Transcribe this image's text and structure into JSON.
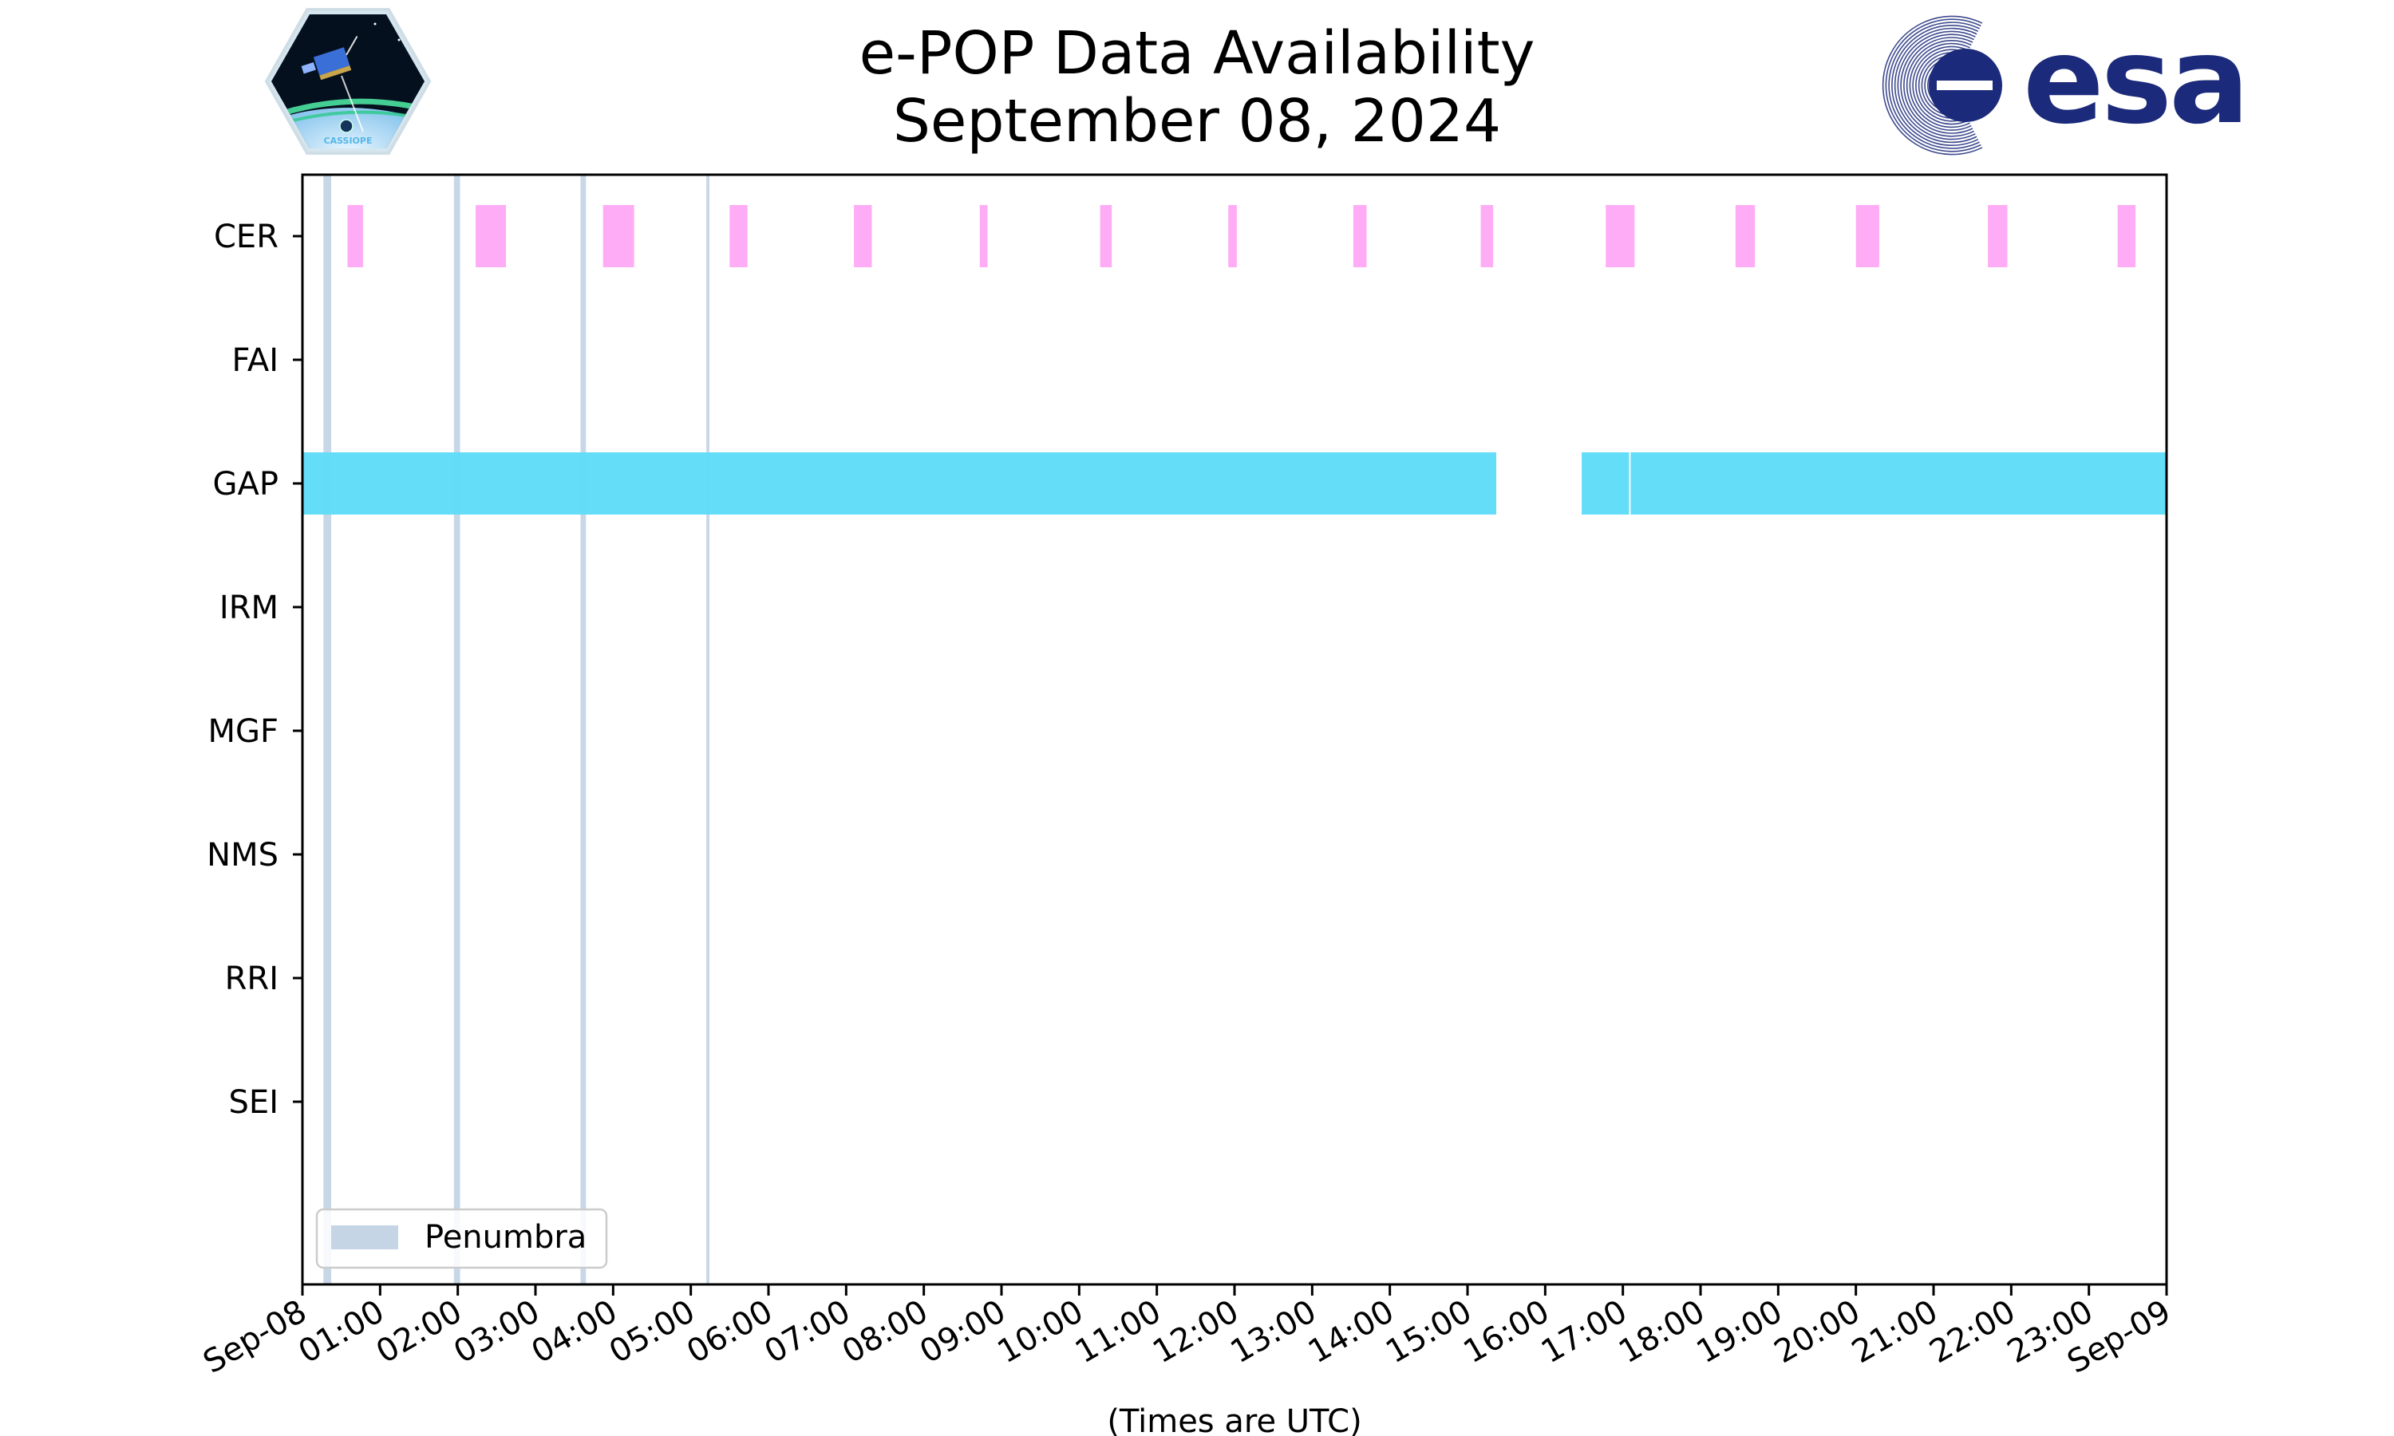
{
  "header": {
    "title_line1": "e-POP Data Availability",
    "title_line2": "September 08, 2024",
    "left_logo": {
      "name": "cassiope-mission-logo",
      "text": "CASSIOPE"
    },
    "right_logo": {
      "name": "esa-logo",
      "text": "esa",
      "color": "#1b2a7a"
    }
  },
  "chart_data": {
    "type": "timeline",
    "xlabel": "(Times are UTC)",
    "x_range_hours": [
      0,
      24
    ],
    "x_tick_labels": [
      "Sep-08",
      "01:00",
      "02:00",
      "03:00",
      "04:00",
      "05:00",
      "06:00",
      "07:00",
      "08:00",
      "09:00",
      "10:00",
      "11:00",
      "12:00",
      "13:00",
      "14:00",
      "15:00",
      "16:00",
      "17:00",
      "18:00",
      "19:00",
      "20:00",
      "21:00",
      "22:00",
      "23:00",
      "Sep-09"
    ],
    "instruments": [
      "CER",
      "FAI",
      "GAP",
      "IRM",
      "MGF",
      "NMS",
      "RRI",
      "SEI"
    ],
    "colors": {
      "CER": "#ffa8f5",
      "GAP": "#5fdcf8",
      "penumbra": "#c5d5e6",
      "axes": "#000000"
    },
    "intervals": {
      "CER": [
        [
          0.58,
          0.78
        ],
        [
          2.23,
          2.62
        ],
        [
          3.87,
          4.27
        ],
        [
          5.5,
          5.73
        ],
        [
          7.1,
          7.33
        ],
        [
          8.72,
          8.82
        ],
        [
          10.27,
          10.42
        ],
        [
          11.92,
          12.03
        ],
        [
          13.53,
          13.7
        ],
        [
          15.17,
          15.33
        ],
        [
          16.78,
          17.15
        ],
        [
          18.45,
          18.7
        ],
        [
          20.0,
          20.3
        ],
        [
          21.7,
          21.95
        ],
        [
          23.37,
          23.6
        ]
      ],
      "FAI": [],
      "GAP": [
        [
          0.0,
          15.37
        ],
        [
          16.47,
          17.08
        ],
        [
          17.1,
          24.0
        ]
      ],
      "IRM": [],
      "MGF": [],
      "NMS": [],
      "RRI": [],
      "SEI": []
    },
    "penumbra": [
      [
        0.27,
        0.37
      ],
      [
        1.95,
        2.03
      ],
      [
        3.58,
        3.65
      ],
      [
        5.2,
        5.24
      ]
    ],
    "legend": {
      "label": "Penumbra",
      "position": "lower-left"
    },
    "grid": false
  }
}
